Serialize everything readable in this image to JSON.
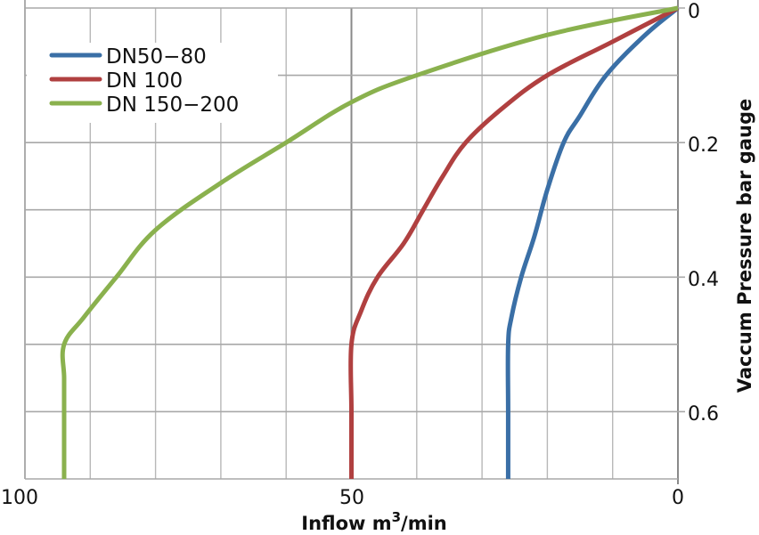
{
  "chart_data": {
    "type": "line",
    "title": "",
    "xlabel": "Inflow m3/min",
    "xlabel_parts": {
      "base": "Inflow m",
      "sup": "3",
      "tail": "/min"
    },
    "ylabel": "Vaccum Pressure bar gauge",
    "xlim": [
      100,
      0
    ],
    "ylim": [
      0,
      0.7
    ],
    "x_reversed": true,
    "y_inverted": true,
    "y_axis_position": "right",
    "grid": true,
    "x_ticks": [
      100,
      50,
      0
    ],
    "x_tick_labels": [
      "100",
      "50",
      "0"
    ],
    "x_gridlines": [
      100,
      90,
      80,
      70,
      60,
      50,
      40,
      30,
      20,
      10,
      0
    ],
    "y_ticks": [
      0,
      0.2,
      0.4,
      0.6
    ],
    "y_tick_labels": [
      "0",
      "0.2",
      "0.4",
      "0.6"
    ],
    "y_gridlines": [
      0,
      0.1,
      0.2,
      0.3,
      0.4,
      0.5,
      0.6,
      0.7
    ],
    "legend_position": "upper-left",
    "series": [
      {
        "name": "DN50-80",
        "label": "DN50 - 80",
        "color": "#3a6fa6",
        "points": [
          [
            0,
            0
          ],
          [
            5,
            0.04
          ],
          [
            11,
            0.1
          ],
          [
            15,
            0.16
          ],
          [
            17.5,
            0.2
          ],
          [
            20,
            0.27
          ],
          [
            22,
            0.34
          ],
          [
            24,
            0.4
          ],
          [
            25.5,
            0.46
          ],
          [
            26,
            0.5
          ],
          [
            26,
            0.6
          ],
          [
            26,
            0.7
          ]
        ]
      },
      {
        "name": "DN 100",
        "label": "DN 100",
        "color": "#b04040",
        "points": [
          [
            0,
            0
          ],
          [
            10,
            0.05
          ],
          [
            20,
            0.1
          ],
          [
            27,
            0.15
          ],
          [
            32.5,
            0.2
          ],
          [
            36,
            0.25
          ],
          [
            39,
            0.3
          ],
          [
            42,
            0.35
          ],
          [
            46,
            0.4
          ],
          [
            48.5,
            0.45
          ],
          [
            50,
            0.5
          ],
          [
            50,
            0.6
          ],
          [
            50,
            0.7
          ]
        ]
      },
      {
        "name": "DN 150-200",
        "label": "DN 150 - 200",
        "color": "#8ab14e",
        "points": [
          [
            0,
            0
          ],
          [
            20,
            0.04
          ],
          [
            40,
            0.1
          ],
          [
            50,
            0.14
          ],
          [
            60,
            0.2
          ],
          [
            70,
            0.26
          ],
          [
            80,
            0.33
          ],
          [
            86,
            0.4
          ],
          [
            91,
            0.46
          ],
          [
            94,
            0.5
          ],
          [
            94,
            0.55
          ],
          [
            94,
            0.6
          ],
          [
            94,
            0.7
          ]
        ]
      }
    ]
  },
  "legend": {
    "items": [
      {
        "label": "DN50−80",
        "color": "#3a6fa6"
      },
      {
        "label": "DN 100",
        "color": "#b04040"
      },
      {
        "label": "DN 150−200",
        "color": "#8ab14e"
      }
    ]
  },
  "axes": {
    "x_title_base": "Inflow m",
    "x_title_sup": "3",
    "x_title_tail": "/min",
    "y_title": "Vaccum Pressure bar gauge",
    "x_labels": [
      "100",
      "50",
      "0"
    ],
    "y_labels": [
      "0",
      "0.2",
      "0.4",
      "0.6"
    ]
  }
}
